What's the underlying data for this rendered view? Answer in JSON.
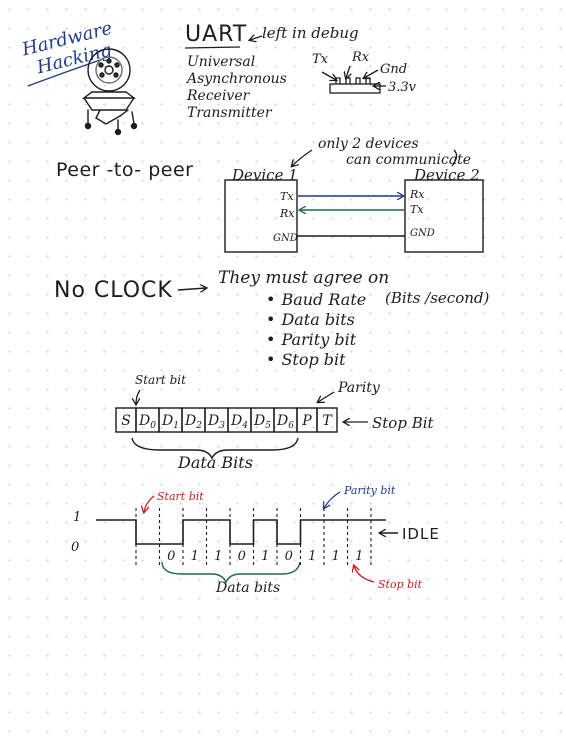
{
  "header": {
    "title_line1": "Hardware",
    "title_line2": "Hacking",
    "uart_title": "UART",
    "uart_note": "left in debug",
    "uart_expansion": [
      "Universal",
      "Asynchronous",
      "Receiver",
      "Transmitter"
    ],
    "pin_labels": {
      "tx": "Tx",
      "rx": "Rx",
      "gnd": "Gnd",
      "v33": "3.3v"
    }
  },
  "peer": {
    "label": "Peer -to- peer",
    "note_line1": "only 2 devices",
    "note_line2": "can communicate",
    "device1": {
      "name": "Device 1",
      "pins": [
        "Tx",
        "Rx",
        "GND"
      ]
    },
    "device2": {
      "name": "Device 2",
      "pins": [
        "Rx",
        "Tx",
        "GND"
      ]
    }
  },
  "clock": {
    "label": "No CLOCK",
    "agree_text": "They must agree on",
    "items": [
      "Baud Rate",
      "Data bits",
      "Parity bit",
      "Stop bit"
    ],
    "baud_note": "(Bits /second)"
  },
  "frame": {
    "start_label": "Start bit",
    "parity_label": "Parity",
    "stop_label": "Stop Bit",
    "cells": [
      "S",
      "D0",
      "D1",
      "D2",
      "D3",
      "D4",
      "D5",
      "D6",
      "P",
      "T"
    ],
    "data_label": "Data Bits"
  },
  "signal": {
    "level_high": "1",
    "level_low": "0",
    "start_label": "Start bit",
    "parity_label": "Parity bit",
    "stop_label": "Stop bit",
    "idle_label": "IDLE",
    "data_label": "Data bits",
    "bits": [
      "0",
      "1",
      "1",
      "0",
      "1",
      "0",
      "1"
    ],
    "post_bits": [
      "1",
      "1"
    ],
    "colors": {
      "red": "#c81e1e",
      "blue": "#1f3b8a",
      "ink": "#1d1d1d"
    }
  }
}
